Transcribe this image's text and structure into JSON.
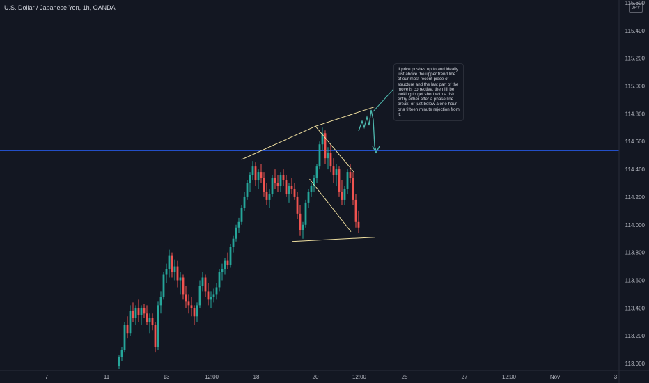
{
  "title": "U.S. Dollar / Japanese Yen, 1h, OANDA",
  "currency_badge": "JPY",
  "annotation": "If price pushes up to and ideally just above the upper trend line of our most recent piece of structure and the last part of the move is corrective, then I'll be looking to get short with a risk entry either after a phase line break, or just below a one hour or a fifteen minute rejection from it.",
  "colors": {
    "background": "#131722",
    "up": "#26a69a",
    "down": "#ef5350",
    "horizontal_line": "#2962ff",
    "trendlines": "#f0e0a0",
    "projection": "#4db6ac"
  },
  "chart_data": {
    "type": "candlestick",
    "series_name": "USDJPY",
    "ylim": [
      112.95,
      115.62
    ],
    "y_ticks": [
      "113.000",
      "113.200",
      "113.400",
      "113.600",
      "113.800",
      "114.000",
      "114.200",
      "114.400",
      "114.600",
      "114.800",
      "115.000",
      "115.200",
      "115.400",
      "115.600"
    ],
    "x_ticks": [
      "7",
      "11",
      "13",
      "12:00",
      "18",
      "20",
      "12:00",
      "25",
      "27",
      "12:00",
      "Nov",
      "3"
    ],
    "grid": false,
    "horizontal_level": 114.535,
    "ohlc": [
      [
        112.98,
        113.06,
        112.96,
        113.05
      ],
      [
        113.05,
        113.12,
        113.02,
        113.1
      ],
      [
        113.1,
        113.3,
        113.08,
        113.28
      ],
      [
        113.28,
        113.34,
        113.18,
        113.22
      ],
      [
        113.22,
        113.42,
        113.2,
        113.38
      ],
      [
        113.38,
        113.44,
        113.3,
        113.33
      ],
      [
        113.33,
        113.42,
        113.28,
        113.4
      ],
      [
        113.4,
        113.46,
        113.3,
        113.35
      ],
      [
        113.35,
        113.42,
        113.28,
        113.4
      ],
      [
        113.4,
        113.43,
        113.33,
        113.36
      ],
      [
        113.36,
        113.42,
        113.28,
        113.3
      ],
      [
        113.3,
        113.36,
        113.22,
        113.33
      ],
      [
        113.33,
        113.36,
        113.24,
        113.28
      ],
      [
        113.28,
        113.3,
        113.08,
        113.12
      ],
      [
        113.12,
        113.45,
        113.1,
        113.42
      ],
      [
        113.42,
        113.52,
        113.36,
        113.48
      ],
      [
        113.48,
        113.66,
        113.46,
        113.64
      ],
      [
        113.64,
        113.72,
        113.58,
        113.68
      ],
      [
        113.68,
        113.82,
        113.62,
        113.78
      ],
      [
        113.78,
        113.8,
        113.62,
        113.66
      ],
      [
        113.66,
        113.75,
        113.6,
        113.7
      ],
      [
        113.7,
        113.74,
        113.55,
        113.6
      ],
      [
        113.6,
        113.66,
        113.5,
        113.62
      ],
      [
        113.62,
        113.64,
        113.46,
        113.5
      ],
      [
        113.5,
        113.56,
        113.4,
        113.45
      ],
      [
        113.45,
        113.5,
        113.36,
        113.42
      ],
      [
        113.42,
        113.48,
        113.34,
        113.4
      ],
      [
        113.4,
        113.42,
        113.28,
        113.34
      ],
      [
        113.34,
        113.44,
        113.3,
        113.42
      ],
      [
        113.42,
        113.6,
        113.4,
        113.56
      ],
      [
        113.56,
        113.66,
        113.52,
        113.62
      ],
      [
        113.62,
        113.64,
        113.48,
        113.52
      ],
      [
        113.52,
        113.58,
        113.42,
        113.46
      ],
      [
        113.46,
        113.52,
        113.4,
        113.48
      ],
      [
        113.48,
        113.54,
        113.44,
        113.5
      ],
      [
        113.5,
        113.58,
        113.46,
        113.55
      ],
      [
        113.55,
        113.68,
        113.52,
        113.66
      ],
      [
        113.66,
        113.72,
        113.6,
        113.68
      ],
      [
        113.68,
        113.76,
        113.64,
        113.74
      ],
      [
        113.74,
        113.8,
        113.68,
        113.71
      ],
      [
        113.71,
        113.86,
        113.69,
        113.84
      ],
      [
        113.84,
        113.92,
        113.8,
        113.9
      ],
      [
        113.9,
        114.0,
        113.88,
        113.98
      ],
      [
        113.98,
        114.05,
        113.94,
        114.02
      ],
      [
        114.02,
        114.14,
        114.0,
        114.12
      ],
      [
        114.12,
        114.24,
        114.1,
        114.2
      ],
      [
        114.2,
        114.32,
        114.18,
        114.3
      ],
      [
        114.3,
        114.38,
        114.24,
        114.36
      ],
      [
        114.36,
        114.46,
        114.32,
        114.42
      ],
      [
        114.42,
        114.45,
        114.28,
        114.32
      ],
      [
        114.32,
        114.4,
        114.26,
        114.38
      ],
      [
        114.38,
        114.44,
        114.3,
        114.34
      ],
      [
        114.34,
        114.38,
        114.2,
        114.24
      ],
      [
        114.24,
        114.3,
        114.14,
        114.18
      ],
      [
        114.18,
        114.26,
        114.12,
        114.22
      ],
      [
        114.22,
        114.36,
        114.2,
        114.34
      ],
      [
        114.34,
        114.4,
        114.26,
        114.3
      ],
      [
        114.3,
        114.36,
        114.24,
        114.28
      ],
      [
        114.28,
        114.38,
        114.24,
        114.36
      ],
      [
        114.36,
        114.4,
        114.28,
        114.32
      ],
      [
        114.32,
        114.36,
        114.2,
        114.22
      ],
      [
        114.22,
        114.3,
        114.16,
        114.28
      ],
      [
        114.28,
        114.34,
        114.22,
        114.26
      ],
      [
        114.26,
        114.3,
        114.18,
        114.2
      ],
      [
        114.2,
        114.24,
        114.04,
        114.08
      ],
      [
        114.08,
        114.14,
        113.92,
        113.96
      ],
      [
        113.96,
        114.02,
        113.9,
        114.0
      ],
      [
        114.0,
        114.18,
        113.98,
        114.16
      ],
      [
        114.16,
        114.26,
        114.12,
        114.24
      ],
      [
        114.24,
        114.3,
        114.2,
        114.28
      ],
      [
        114.28,
        114.36,
        114.24,
        114.34
      ],
      [
        114.34,
        114.44,
        114.3,
        114.42
      ],
      [
        114.42,
        114.6,
        114.4,
        114.58
      ],
      [
        114.58,
        114.7,
        114.54,
        114.66
      ],
      [
        114.66,
        114.68,
        114.44,
        114.48
      ],
      [
        114.48,
        114.56,
        114.4,
        114.52
      ],
      [
        114.52,
        114.58,
        114.38,
        114.42
      ],
      [
        114.42,
        114.48,
        114.3,
        114.36
      ],
      [
        114.36,
        114.44,
        114.28,
        114.4
      ],
      [
        114.4,
        114.42,
        114.2,
        114.24
      ],
      [
        114.24,
        114.32,
        114.14,
        114.18
      ],
      [
        114.18,
        114.28,
        114.14,
        114.26
      ],
      [
        114.26,
        114.4,
        114.22,
        114.38
      ],
      [
        114.38,
        114.44,
        114.3,
        114.34
      ],
      [
        114.34,
        114.38,
        114.14,
        114.18
      ],
      [
        114.18,
        114.22,
        113.98,
        114.02
      ],
      [
        114.02,
        114.1,
        113.94,
        113.98
      ]
    ],
    "annotation_drawings": {
      "upper_trendline": {
        "from": [
          17.5,
          114.47
        ],
        "to": [
          20,
          114.71
        ]
      },
      "projected_trendline": {
        "from": [
          20,
          114.71
        ],
        "to": [
          22,
          114.85
        ]
      },
      "descending_line": {
        "from": [
          20,
          114.71
        ],
        "to": [
          21.3,
          114.38
        ]
      },
      "inner_diagonal": {
        "from": [
          19.8,
          114.33
        ],
        "to": [
          21.2,
          113.95
        ]
      },
      "lower_support": {
        "from": [
          19.2,
          113.88
        ],
        "to": [
          22,
          113.91
        ]
      }
    }
  }
}
